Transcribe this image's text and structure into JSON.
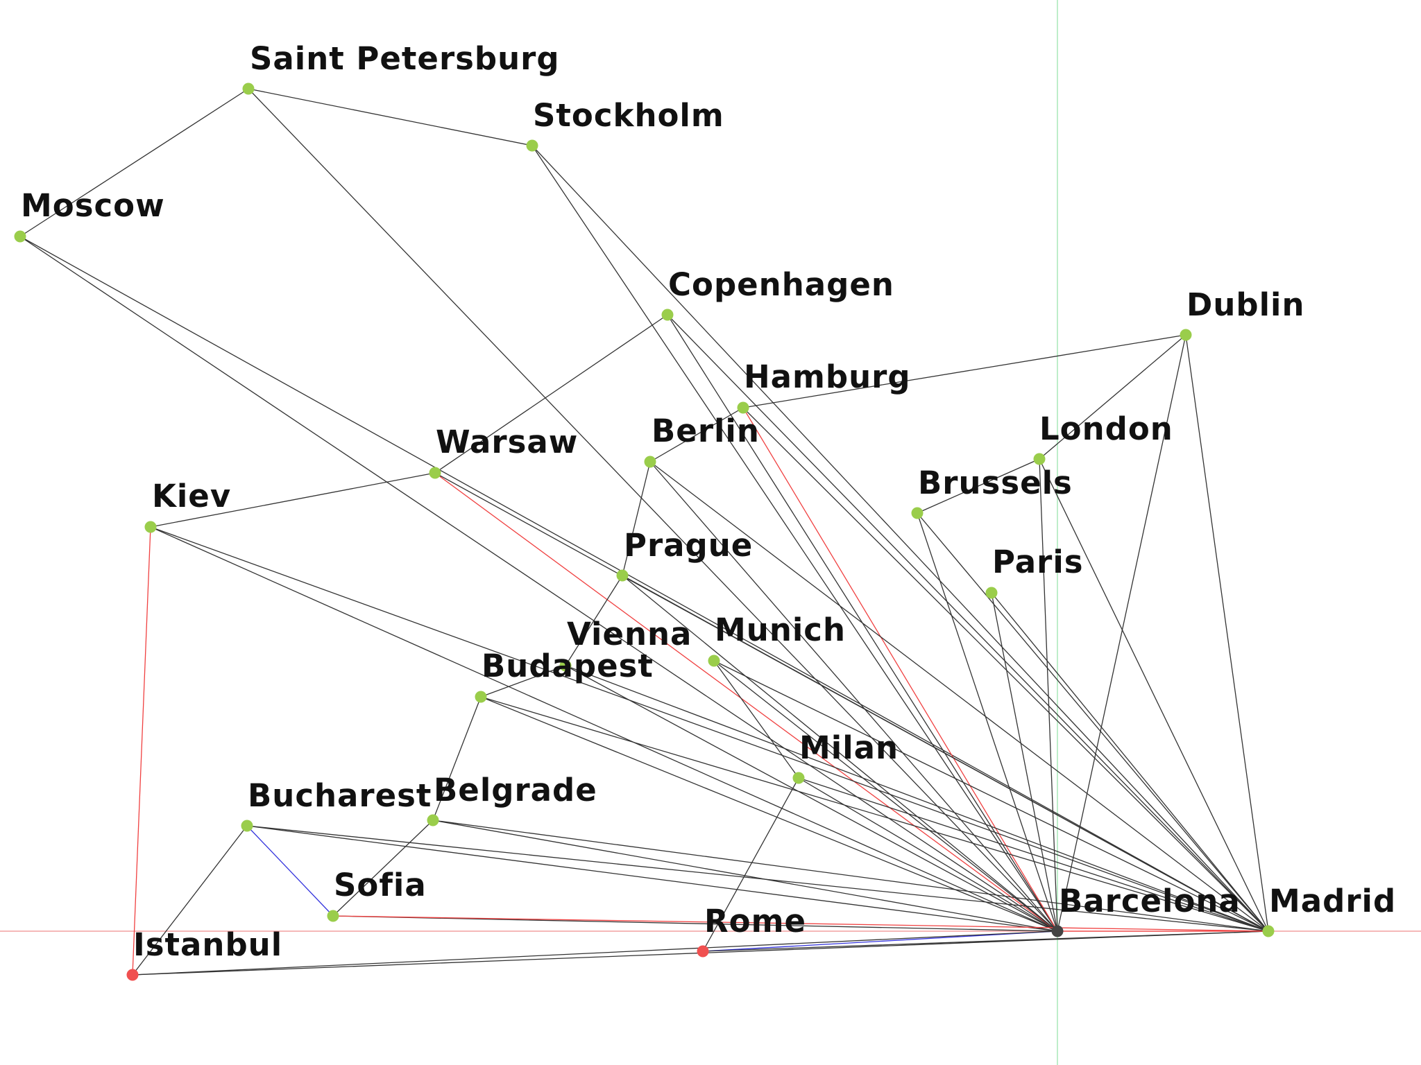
{
  "colors": {
    "node": "#9ACD4B",
    "node_current": "#444444",
    "node_highlight": "#F05050",
    "edge": "#333333",
    "edge_red": "#F04040",
    "edge_blue": "#3333DD",
    "crosshair_h": "#F2A0A0",
    "crosshair_v": "#A8E8B8"
  },
  "cities": [
    {
      "id": "saint-petersburg",
      "name": "Saint Petersburg",
      "state": "normal"
    },
    {
      "id": "stockholm",
      "name": "Stockholm",
      "state": "normal"
    },
    {
      "id": "moscow",
      "name": "Moscow",
      "state": "normal"
    },
    {
      "id": "copenhagen",
      "name": "Copenhagen",
      "state": "normal"
    },
    {
      "id": "dublin",
      "name": "Dublin",
      "state": "normal"
    },
    {
      "id": "hamburg",
      "name": "Hamburg",
      "state": "normal"
    },
    {
      "id": "london",
      "name": "London",
      "state": "normal"
    },
    {
      "id": "berlin",
      "name": "Berlin",
      "state": "normal"
    },
    {
      "id": "warsaw",
      "name": "Warsaw",
      "state": "normal"
    },
    {
      "id": "brussels",
      "name": "Brussels",
      "state": "normal"
    },
    {
      "id": "kiev",
      "name": "Kiev",
      "state": "normal"
    },
    {
      "id": "paris",
      "name": "Paris",
      "state": "normal"
    },
    {
      "id": "prague",
      "name": "Prague",
      "state": "normal"
    },
    {
      "id": "munich",
      "name": "Munich",
      "state": "normal"
    },
    {
      "id": "vienna",
      "name": "Vienna",
      "state": "normal"
    },
    {
      "id": "budapest",
      "name": "Budapest",
      "state": "normal"
    },
    {
      "id": "milan",
      "name": "Milan",
      "state": "normal"
    },
    {
      "id": "bucharest",
      "name": "Bucharest",
      "state": "normal"
    },
    {
      "id": "belgrade",
      "name": "Belgrade",
      "state": "normal"
    },
    {
      "id": "sofia",
      "name": "Sofia",
      "state": "normal"
    },
    {
      "id": "barcelona",
      "name": "Barcelona",
      "state": "current"
    },
    {
      "id": "madrid",
      "name": "Madrid",
      "state": "normal"
    },
    {
      "id": "rome",
      "name": "Rome",
      "state": "highlight"
    },
    {
      "id": "istanbul",
      "name": "Istanbul",
      "state": "highlight"
    }
  ],
  "edges": [
    [
      "saint-petersburg",
      "stockholm",
      "edge"
    ],
    [
      "saint-petersburg",
      "moscow",
      "edge"
    ],
    [
      "saint-petersburg",
      "barcelona",
      "edge"
    ],
    [
      "stockholm",
      "barcelona",
      "edge"
    ],
    [
      "stockholm",
      "madrid",
      "edge"
    ],
    [
      "moscow",
      "barcelona",
      "edge"
    ],
    [
      "moscow",
      "madrid",
      "edge"
    ],
    [
      "copenhagen",
      "warsaw",
      "edge"
    ],
    [
      "copenhagen",
      "barcelona",
      "edge"
    ],
    [
      "copenhagen",
      "madrid",
      "edge"
    ],
    [
      "hamburg",
      "dublin",
      "edge"
    ],
    [
      "hamburg",
      "barcelona",
      "edge_red"
    ],
    [
      "hamburg",
      "madrid",
      "edge"
    ],
    [
      "dublin",
      "london",
      "edge"
    ],
    [
      "dublin",
      "barcelona",
      "edge"
    ],
    [
      "dublin",
      "madrid",
      "edge"
    ],
    [
      "london",
      "brussels",
      "edge"
    ],
    [
      "london",
      "barcelona",
      "edge"
    ],
    [
      "london",
      "madrid",
      "edge"
    ],
    [
      "berlin",
      "hamburg",
      "edge"
    ],
    [
      "berlin",
      "prague",
      "edge"
    ],
    [
      "berlin",
      "barcelona",
      "edge"
    ],
    [
      "berlin",
      "madrid",
      "edge"
    ],
    [
      "warsaw",
      "kiev",
      "edge"
    ],
    [
      "warsaw",
      "barcelona",
      "edge_red"
    ],
    [
      "warsaw",
      "madrid",
      "edge"
    ],
    [
      "brussels",
      "barcelona",
      "edge"
    ],
    [
      "brussels",
      "madrid",
      "edge"
    ],
    [
      "paris",
      "barcelona",
      "edge"
    ],
    [
      "paris",
      "madrid",
      "edge"
    ],
    [
      "kiev",
      "istanbul",
      "edge_red"
    ],
    [
      "kiev",
      "barcelona",
      "edge"
    ],
    [
      "kiev",
      "madrid",
      "edge"
    ],
    [
      "prague",
      "vienna",
      "edge"
    ],
    [
      "prague",
      "barcelona",
      "edge"
    ],
    [
      "prague",
      "madrid",
      "edge"
    ],
    [
      "munich",
      "milan",
      "edge"
    ],
    [
      "munich",
      "barcelona",
      "edge"
    ],
    [
      "munich",
      "madrid",
      "edge"
    ],
    [
      "vienna",
      "budapest",
      "edge"
    ],
    [
      "vienna",
      "barcelona",
      "edge"
    ],
    [
      "vienna",
      "madrid",
      "edge"
    ],
    [
      "budapest",
      "belgrade",
      "edge"
    ],
    [
      "budapest",
      "barcelona",
      "edge"
    ],
    [
      "budapest",
      "madrid",
      "edge"
    ],
    [
      "milan",
      "rome",
      "edge"
    ],
    [
      "milan",
      "barcelona",
      "edge"
    ],
    [
      "milan",
      "madrid",
      "edge"
    ],
    [
      "bucharest",
      "sofia",
      "edge_blue"
    ],
    [
      "bucharest",
      "istanbul",
      "edge"
    ],
    [
      "bucharest",
      "barcelona",
      "edge"
    ],
    [
      "bucharest",
      "madrid",
      "edge"
    ],
    [
      "belgrade",
      "sofia",
      "edge"
    ],
    [
      "belgrade",
      "barcelona",
      "edge"
    ],
    [
      "belgrade",
      "madrid",
      "edge"
    ],
    [
      "sofia",
      "barcelona",
      "edge"
    ],
    [
      "sofia",
      "madrid",
      "edge_red"
    ],
    [
      "rome",
      "barcelona",
      "edge_blue"
    ],
    [
      "rome",
      "madrid",
      "edge"
    ],
    [
      "istanbul",
      "barcelona",
      "edge"
    ],
    [
      "istanbul",
      "madrid",
      "edge"
    ],
    [
      "barcelona",
      "madrid",
      "edge_red"
    ]
  ]
}
